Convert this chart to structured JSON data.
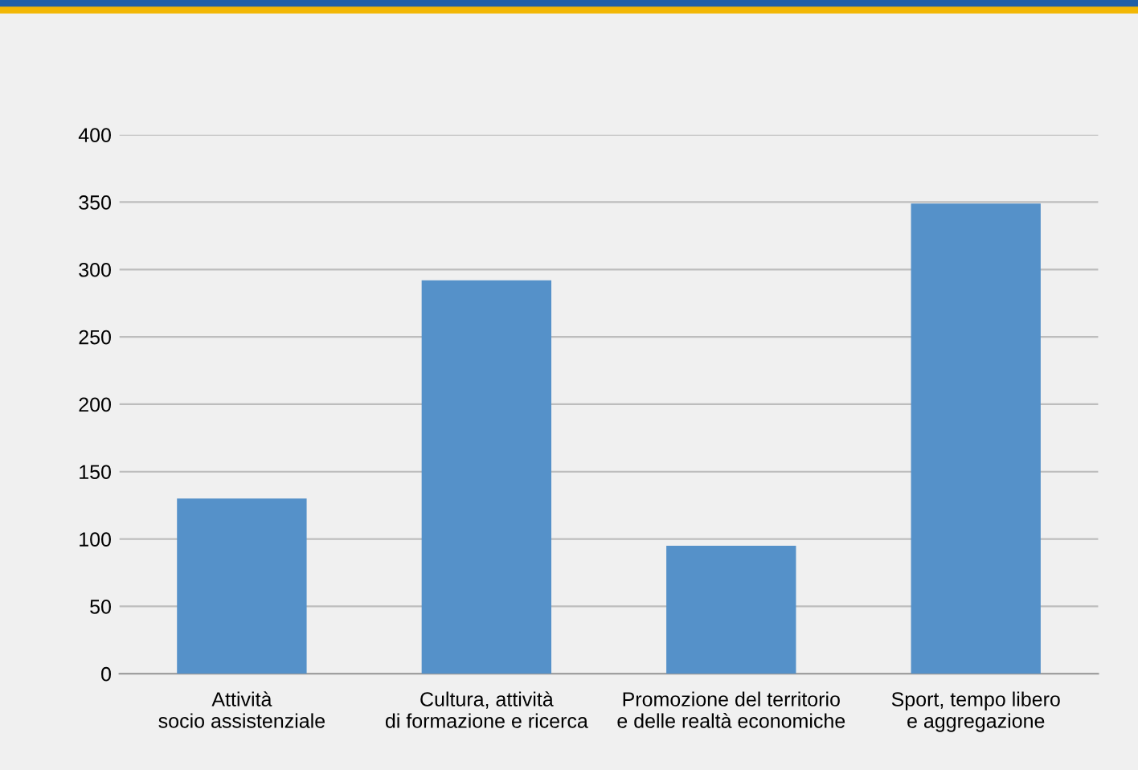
{
  "chart_data": {
    "type": "bar",
    "categories": [
      "Attività\nsocio assistenziale",
      "Cultura, attività\ndi formazione e ricerca",
      "Promozione del territorio\ne delle realtà economiche",
      "Sport, tempo libero\ne aggregazione"
    ],
    "values": [
      130,
      292,
      95,
      349
    ],
    "color": "#5591c9",
    "ylim": [
      0,
      400
    ],
    "yticks": [
      0,
      50,
      100,
      150,
      200,
      250,
      300,
      350,
      400
    ],
    "grid": "y",
    "legend": false
  }
}
